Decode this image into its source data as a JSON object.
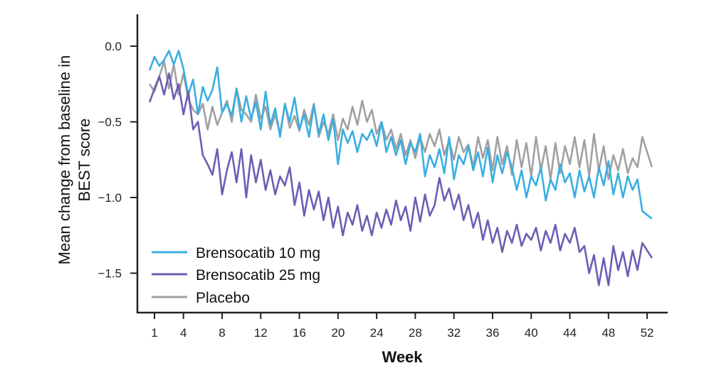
{
  "chart_data": {
    "type": "line",
    "title": "",
    "xlabel": "Week",
    "ylabel": "Mean change from baseline in BEST score",
    "ylabel_lines": [
      "Mean change from baseline in",
      "BEST score"
    ],
    "xlim": [
      0,
      53
    ],
    "ylim": [
      -1.75,
      0.2
    ],
    "xticks": [
      1,
      4,
      8,
      12,
      16,
      20,
      24,
      28,
      32,
      36,
      40,
      44,
      48,
      52
    ],
    "yticks": [
      0.0,
      -0.5,
      -1.0,
      -1.5
    ],
    "ytick_labels": [
      "0.0",
      "−0.5",
      "−1.0",
      "−1.5"
    ],
    "grid": false,
    "legend": "bottom-left",
    "x": [
      0.5,
      1,
      1.5,
      2,
      2.5,
      3,
      3.5,
      4,
      4.5,
      5,
      5.5,
      6,
      6.5,
      7,
      7.5,
      8,
      8.5,
      9,
      9.5,
      10,
      10.5,
      11,
      11.5,
      12,
      12.5,
      13,
      13.5,
      14,
      14.5,
      15,
      15.5,
      16,
      16.5,
      17,
      17.5,
      18,
      18.5,
      19,
      19.5,
      20,
      20.5,
      21,
      21.5,
      22,
      22.5,
      23,
      23.5,
      24,
      24.5,
      25,
      25.5,
      26,
      26.5,
      27,
      27.5,
      28,
      28.5,
      29,
      29.5,
      30,
      30.5,
      31,
      31.5,
      32,
      32.5,
      33,
      33.5,
      34,
      34.5,
      35,
      35.5,
      36,
      36.5,
      37,
      37.5,
      38,
      38.5,
      39,
      39.5,
      40,
      40.5,
      41,
      41.5,
      42,
      42.5,
      43,
      43.5,
      44,
      44.5,
      45,
      45.5,
      46,
      46.5,
      47,
      47.5,
      48,
      48.5,
      49,
      49.5,
      50,
      50.5,
      51,
      51.5,
      52.5
    ],
    "series": [
      {
        "name": "Brensocatib 10 mg",
        "color": "#3aaee0",
        "values": [
          -0.16,
          -0.07,
          -0.13,
          -0.09,
          -0.03,
          -0.12,
          -0.03,
          -0.15,
          -0.32,
          -0.22,
          -0.45,
          -0.27,
          -0.36,
          -0.29,
          -0.14,
          -0.44,
          -0.38,
          -0.46,
          -0.28,
          -0.5,
          -0.33,
          -0.48,
          -0.37,
          -0.55,
          -0.3,
          -0.52,
          -0.41,
          -0.6,
          -0.38,
          -0.5,
          -0.34,
          -0.55,
          -0.45,
          -0.6,
          -0.39,
          -0.58,
          -0.45,
          -0.62,
          -0.48,
          -0.78,
          -0.55,
          -0.64,
          -0.56,
          -0.7,
          -0.58,
          -0.62,
          -0.55,
          -0.66,
          -0.5,
          -0.7,
          -0.6,
          -0.72,
          -0.62,
          -0.78,
          -0.64,
          -0.7,
          -0.58,
          -0.86,
          -0.72,
          -0.8,
          -0.68,
          -0.84,
          -0.6,
          -0.88,
          -0.72,
          -0.78,
          -0.66,
          -0.82,
          -0.7,
          -0.86,
          -0.67,
          -0.9,
          -0.72,
          -0.84,
          -0.7,
          -0.8,
          -0.95,
          -0.82,
          -1.0,
          -0.86,
          -0.92,
          -0.8,
          -1.02,
          -0.88,
          -0.95,
          -0.78,
          -0.9,
          -0.84,
          -1.0,
          -0.82,
          -0.96,
          -0.86,
          -1.0,
          -0.8,
          -0.92,
          -0.76,
          -0.98,
          -0.84,
          -1.0,
          -0.86,
          -0.95,
          -0.88,
          -1.09,
          -1.14
        ]
      },
      {
        "name": "Brensocatib 25 mg",
        "color": "#6a5fb4",
        "values": [
          -0.37,
          -0.28,
          -0.2,
          -0.32,
          -0.18,
          -0.35,
          -0.25,
          -0.45,
          -0.3,
          -0.55,
          -0.5,
          -0.72,
          -0.78,
          -0.85,
          -0.68,
          -0.98,
          -0.82,
          -0.7,
          -0.9,
          -0.68,
          -1.0,
          -0.72,
          -0.9,
          -0.75,
          -0.95,
          -0.82,
          -0.98,
          -0.86,
          -0.92,
          -0.8,
          -1.05,
          -0.9,
          -1.12,
          -0.95,
          -1.08,
          -0.96,
          -1.15,
          -1.0,
          -1.2,
          -1.06,
          -1.25,
          -1.1,
          -1.18,
          -1.05,
          -1.22,
          -1.12,
          -1.25,
          -1.1,
          -1.2,
          -1.08,
          -1.18,
          -1.02,
          -1.15,
          -1.06,
          -1.22,
          -1.0,
          -1.16,
          -0.98,
          -1.12,
          -1.05,
          -0.87,
          -1.02,
          -0.94,
          -1.08,
          -0.98,
          -1.15,
          -1.05,
          -1.2,
          -1.1,
          -1.28,
          -1.15,
          -1.3,
          -1.2,
          -1.36,
          -1.22,
          -1.3,
          -1.18,
          -1.32,
          -1.24,
          -1.28,
          -1.2,
          -1.35,
          -1.22,
          -1.3,
          -1.18,
          -1.35,
          -1.24,
          -1.3,
          -1.2,
          -1.36,
          -1.32,
          -1.5,
          -1.38,
          -1.58,
          -1.4,
          -1.58,
          -1.32,
          -1.48,
          -1.36,
          -1.52,
          -1.35,
          -1.48,
          -1.3,
          -1.4
        ]
      },
      {
        "name": "Placebo",
        "color": "#a0a0a2",
        "values": [
          -0.25,
          -0.3,
          -0.2,
          -0.1,
          -0.28,
          -0.12,
          -0.32,
          -0.18,
          -0.35,
          -0.42,
          -0.45,
          -0.38,
          -0.55,
          -0.4,
          -0.52,
          -0.44,
          -0.36,
          -0.5,
          -0.28,
          -0.42,
          -0.45,
          -0.5,
          -0.32,
          -0.48,
          -0.4,
          -0.55,
          -0.45,
          -0.58,
          -0.38,
          -0.54,
          -0.46,
          -0.56,
          -0.42,
          -0.52,
          -0.38,
          -0.6,
          -0.5,
          -0.58,
          -0.45,
          -0.62,
          -0.48,
          -0.55,
          -0.4,
          -0.52,
          -0.36,
          -0.5,
          -0.42,
          -0.58,
          -0.5,
          -0.62,
          -0.55,
          -0.68,
          -0.58,
          -0.72,
          -0.62,
          -0.74,
          -0.6,
          -0.7,
          -0.58,
          -0.66,
          -0.55,
          -0.72,
          -0.62,
          -0.75,
          -0.6,
          -0.7,
          -0.65,
          -0.8,
          -0.6,
          -0.74,
          -0.62,
          -0.82,
          -0.6,
          -0.78,
          -0.66,
          -0.85,
          -0.62,
          -0.8,
          -0.64,
          -0.86,
          -0.6,
          -0.82,
          -0.66,
          -0.88,
          -0.64,
          -0.84,
          -0.66,
          -0.78,
          -0.6,
          -0.8,
          -0.62,
          -0.86,
          -0.58,
          -0.82,
          -0.66,
          -0.88,
          -0.72,
          -0.82,
          -0.68,
          -0.84,
          -0.74,
          -0.8,
          -0.6,
          -0.8
        ]
      }
    ]
  }
}
